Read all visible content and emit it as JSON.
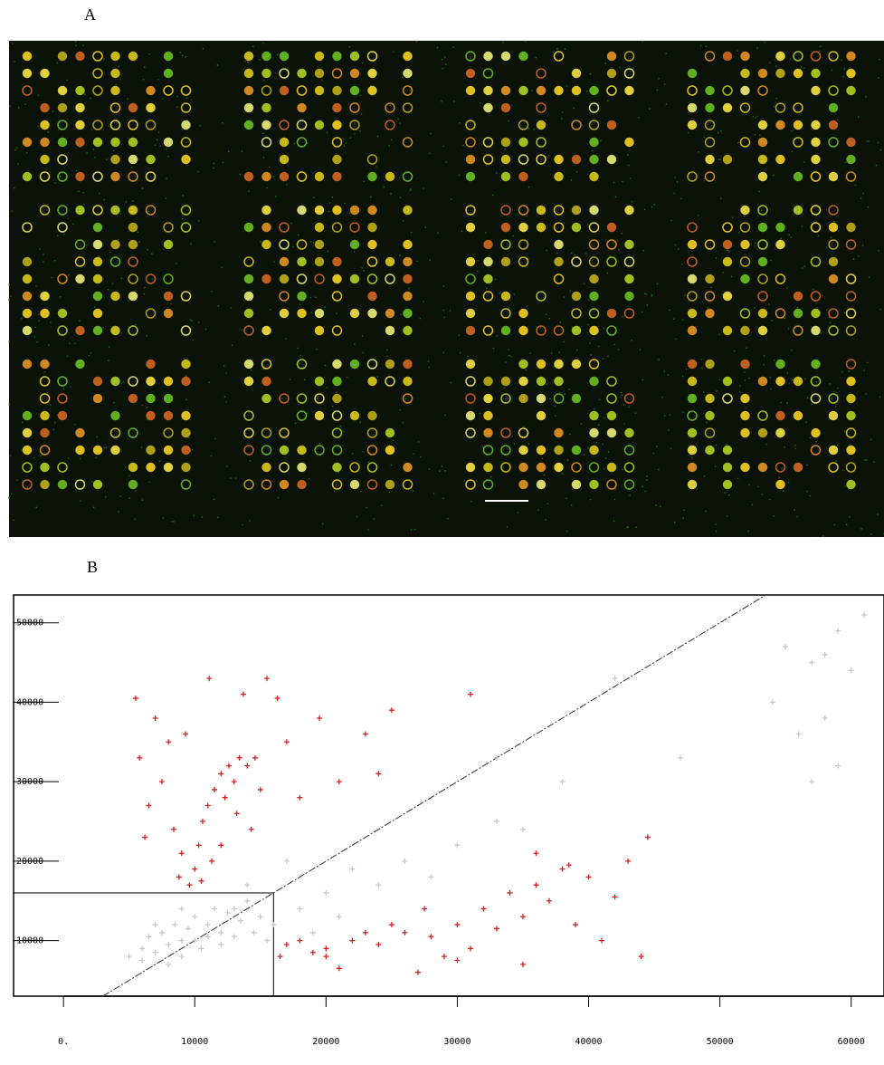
{
  "figure": {
    "panel_a_label": "A"
  },
  "chart_data": {
    "type": "scatter",
    "panel_label": "B",
    "xlim": [
      -3800,
      62500
    ],
    "ylim": [
      3000,
      53500
    ],
    "xticks": [
      {
        "value": 0,
        "label": "0."
      },
      10000,
      20000,
      30000,
      40000,
      50000,
      60000
    ],
    "yticks": [
      10000,
      20000,
      30000,
      40000,
      50000
    ],
    "diagonal": true,
    "threshold_box": 16000,
    "series": [
      {
        "color": "#c8c8c8",
        "x": [
          5000,
          6000,
          6500,
          7000,
          7500,
          8000,
          8500,
          9000,
          9500,
          10000,
          10500,
          11000,
          11500,
          12000,
          12500,
          13000,
          13500,
          14000,
          14500,
          15000,
          6000,
          8000,
          9000,
          10000,
          11000,
          12000,
          7000,
          9000,
          13000,
          15500,
          16000,
          18000,
          20000,
          22000,
          24000,
          26000,
          28000,
          30000,
          33000,
          35000,
          19000,
          21000,
          38000,
          42000,
          47000,
          54000,
          55000,
          57000,
          58000,
          59000,
          60000,
          58000,
          57000,
          59000,
          56000,
          14000,
          17000,
          33000,
          61000
        ],
        "values": [
          8000,
          9000,
          10500,
          8500,
          11000,
          9500,
          12000,
          10000,
          11500,
          13000,
          9000,
          12000,
          14000,
          11000,
          13500,
          10500,
          12500,
          15000,
          11000,
          13000,
          7500,
          7000,
          8000,
          10000,
          10500,
          9500,
          12000,
          14000,
          14000,
          10000,
          12000,
          14000,
          16000,
          19000,
          17000,
          20000,
          18000,
          22000,
          25000,
          24000,
          11000,
          13000,
          30000,
          43000,
          33000,
          40000,
          47000,
          45000,
          46000,
          49000,
          44000,
          38000,
          30000,
          32000,
          36000,
          17000,
          20000,
          33000,
          51000
        ]
      },
      {
        "color": "#d62020",
        "x": [
          5500,
          5800,
          6200,
          6500,
          7000,
          7500,
          8000,
          8400,
          8800,
          9000,
          9300,
          9600,
          10000,
          10300,
          10600,
          11000,
          11100,
          11300,
          11500,
          12000,
          12300,
          12600,
          13000,
          13400,
          13700,
          14000,
          14300,
          14600,
          15000,
          15500,
          16300,
          17000,
          18000,
          19500,
          21000,
          23000,
          25000,
          31000,
          24000,
          10500,
          12000,
          13200,
          16500,
          17000,
          18000,
          19000,
          20000,
          21000,
          22000,
          23000,
          24000,
          25000,
          26000,
          27000,
          28000,
          29000,
          30000,
          31000,
          32000,
          33000,
          34000,
          35000,
          36000,
          37000,
          38000,
          38500,
          39000,
          40000,
          41000,
          42000,
          43000,
          44000,
          44500,
          35000,
          30000,
          27500,
          36000,
          20000
        ],
        "values": [
          40500,
          33000,
          23000,
          27000,
          38000,
          30000,
          35000,
          24000,
          18000,
          21000,
          36000,
          17000,
          19000,
          22000,
          25000,
          27000,
          43000,
          20000,
          29000,
          31000,
          28000,
          32000,
          30000,
          33000,
          41000,
          32000,
          24000,
          33000,
          29000,
          43000,
          40500,
          35000,
          28000,
          38000,
          30000,
          36000,
          39000,
          41000,
          31000,
          17500,
          22000,
          26000,
          8000,
          9500,
          10000,
          8500,
          9000,
          6500,
          10000,
          11000,
          9500,
          12000,
          11000,
          6000,
          10500,
          8000,
          12000,
          9000,
          14000,
          11500,
          16000,
          13000,
          17000,
          15000,
          19000,
          19500,
          12000,
          18000,
          10000,
          15500,
          20000,
          8000,
          23000,
          7000,
          7500,
          14000,
          21000,
          8000
        ]
      }
    ]
  }
}
